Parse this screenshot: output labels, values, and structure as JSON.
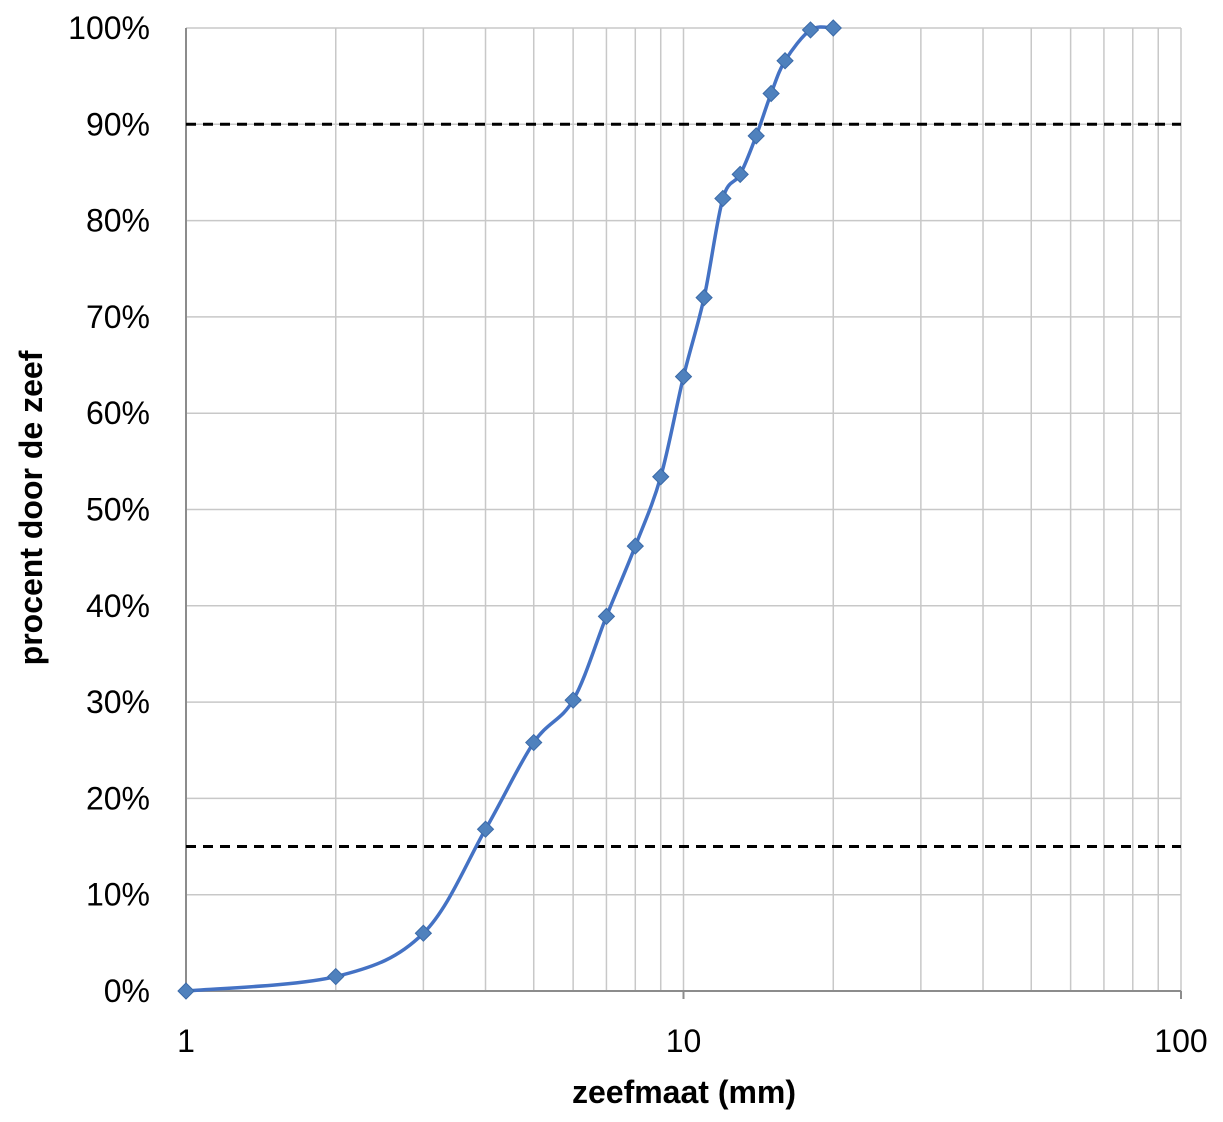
{
  "chart_data": {
    "type": "line",
    "title": "",
    "xlabel": "zeefmaat (mm)",
    "ylabel": "procent door de zeef",
    "x_scale": "log",
    "xlim": [
      1,
      100
    ],
    "ylim": [
      0,
      1
    ],
    "grid": true,
    "legend": "none",
    "x_tick_labels": [
      {
        "value": 1,
        "label": "1"
      },
      {
        "value": 10,
        "label": "10"
      },
      {
        "value": 100,
        "label": "100"
      }
    ],
    "y_tick_labels": [
      {
        "value": 0.0,
        "label": "0%"
      },
      {
        "value": 0.1,
        "label": "10%"
      },
      {
        "value": 0.2,
        "label": "20%"
      },
      {
        "value": 0.3,
        "label": "30%"
      },
      {
        "value": 0.4,
        "label": "40%"
      },
      {
        "value": 0.5,
        "label": "50%"
      },
      {
        "value": 0.6,
        "label": "60%"
      },
      {
        "value": 0.7,
        "label": "70%"
      },
      {
        "value": 0.8,
        "label": "80%"
      },
      {
        "value": 0.9,
        "label": "90%"
      },
      {
        "value": 1.0,
        "label": "100%"
      }
    ],
    "series": [
      {
        "color": "#4472C4",
        "marker": "diamond",
        "smooth": true,
        "x": [
          1,
          2,
          3,
          4,
          5,
          6,
          7,
          8,
          9,
          10,
          11,
          12,
          13,
          14,
          15,
          16,
          18,
          20
        ],
        "y": [
          0.0,
          0.015,
          0.06,
          0.168,
          0.258,
          0.302,
          0.389,
          0.462,
          0.534,
          0.638,
          0.72,
          0.823,
          0.848,
          0.888,
          0.932,
          0.966,
          0.998,
          1.0
        ]
      }
    ],
    "reference_lines": [
      {
        "axis": "y",
        "value": 0.9,
        "style": "dashed",
        "color": "#000000"
      },
      {
        "axis": "y",
        "value": 0.15,
        "style": "dashed",
        "color": "#000000"
      }
    ]
  }
}
